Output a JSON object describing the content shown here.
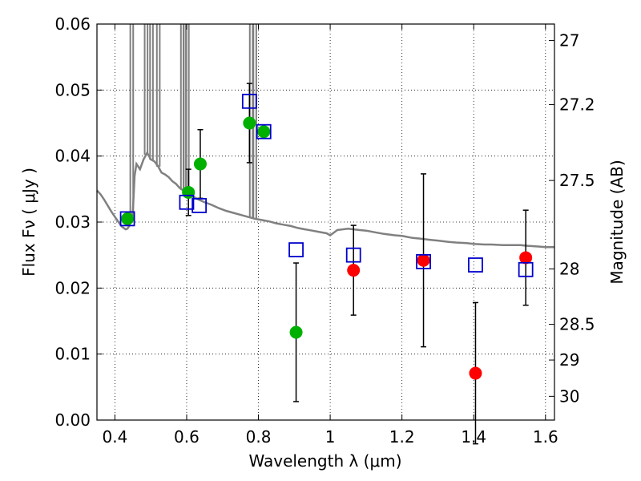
{
  "chart_data": {
    "type": "scatter",
    "xlabel": "Wavelength  λ (μm)",
    "ylabel": "Flux  Fν  ( μJy )",
    "y2label": "Magnitude (AB)",
    "xlim": [
      0.35,
      1.625
    ],
    "ylim": [
      0.0,
      0.06
    ],
    "grid": true,
    "xticks": [
      0.4,
      0.6,
      0.8,
      1.0,
      1.2,
      1.4,
      1.6
    ],
    "xtick_labels": [
      "0.4",
      "0.6",
      "0.8",
      "1",
      "1.2",
      "1.4",
      "1.6"
    ],
    "yticks": [
      0.0,
      0.01,
      0.02,
      0.03,
      0.04,
      0.05,
      0.06
    ],
    "ytick_labels": [
      "0.00",
      "0.01",
      "0.02",
      "0.03",
      "0.04",
      "0.05",
      "0.06"
    ],
    "magnitude_ticks": [
      {
        "label": "27",
        "flux": 0.0575
      },
      {
        "label": "27.2",
        "flux": 0.0478
      },
      {
        "label": "27.5",
        "flux": 0.0363
      },
      {
        "label": "28",
        "flux": 0.0229
      },
      {
        "label": "28.5",
        "flux": 0.0145
      },
      {
        "label": "29",
        "flux": 0.0091
      },
      {
        "label": "30",
        "flux": 0.0036
      }
    ],
    "series": [
      {
        "marker": "open-square",
        "color": "#0000cc",
        "points": [
          {
            "x": 0.435,
            "y": 0.0305
          },
          {
            "x": 0.6,
            "y": 0.033
          },
          {
            "x": 0.635,
            "y": 0.0325
          },
          {
            "x": 0.775,
            "y": 0.0483
          },
          {
            "x": 0.815,
            "y": 0.0437
          },
          {
            "x": 0.905,
            "y": 0.0258
          },
          {
            "x": 1.065,
            "y": 0.025
          },
          {
            "x": 1.26,
            "y": 0.024
          },
          {
            "x": 1.405,
            "y": 0.0235
          },
          {
            "x": 1.545,
            "y": 0.0228
          }
        ]
      },
      {
        "marker": "filled-circle",
        "color": "#00b000",
        "points": [
          {
            "x": 0.435,
            "y": 0.0305
          },
          {
            "x": 0.605,
            "y": 0.0345,
            "err": 0.0035
          },
          {
            "x": 0.638,
            "y": 0.0388,
            "err": 0.0052
          },
          {
            "x": 0.775,
            "y": 0.045,
            "err": 0.006
          },
          {
            "x": 0.815,
            "y": 0.0437
          },
          {
            "x": 0.905,
            "y": 0.0133,
            "err": 0.0105
          }
        ]
      },
      {
        "marker": "filled-circle",
        "color": "#ff0000",
        "points": [
          {
            "x": 1.065,
            "y": 0.0227,
            "err": 0.0068
          },
          {
            "x": 1.26,
            "y": 0.0242,
            "err": 0.0131
          },
          {
            "x": 1.405,
            "y": 0.0071,
            "err": 0.0107
          },
          {
            "x": 1.545,
            "y": 0.0246,
            "err": 0.0072
          }
        ]
      }
    ],
    "model_spectrum": {
      "color": "#808080",
      "points": [
        [
          0.35,
          0.0348
        ],
        [
          0.36,
          0.0342
        ],
        [
          0.37,
          0.0334
        ],
        [
          0.38,
          0.0325
        ],
        [
          0.39,
          0.0316
        ],
        [
          0.4,
          0.0308
        ],
        [
          0.41,
          0.03
        ],
        [
          0.42,
          0.0293
        ],
        [
          0.43,
          0.0289
        ],
        [
          0.435,
          0.029
        ],
        [
          0.44,
          0.0294
        ],
        [
          0.445,
          0.0305
        ],
        [
          0.45,
          0.0315
        ],
        [
          0.455,
          0.037
        ],
        [
          0.46,
          0.0388
        ],
        [
          0.47,
          0.038
        ],
        [
          0.48,
          0.0395
        ],
        [
          0.49,
          0.0405
        ],
        [
          0.5,
          0.0395
        ],
        [
          0.51,
          0.0392
        ],
        [
          0.52,
          0.0385
        ],
        [
          0.53,
          0.0375
        ],
        [
          0.54,
          0.0372
        ],
        [
          0.55,
          0.0368
        ],
        [
          0.56,
          0.0362
        ],
        [
          0.57,
          0.0358
        ],
        [
          0.58,
          0.0352
        ],
        [
          0.59,
          0.0348
        ],
        [
          0.6,
          0.0343
        ],
        [
          0.61,
          0.034
        ],
        [
          0.62,
          0.0338
        ],
        [
          0.63,
          0.0335
        ],
        [
          0.65,
          0.033
        ],
        [
          0.67,
          0.0326
        ],
        [
          0.69,
          0.0321
        ],
        [
          0.71,
          0.0317
        ],
        [
          0.73,
          0.0314
        ],
        [
          0.75,
          0.0311
        ],
        [
          0.77,
          0.0308
        ],
        [
          0.79,
          0.0305
        ],
        [
          0.81,
          0.0303
        ],
        [
          0.83,
          0.0301
        ],
        [
          0.85,
          0.0298
        ],
        [
          0.87,
          0.0296
        ],
        [
          0.89,
          0.0294
        ],
        [
          0.91,
          0.0291
        ],
        [
          0.93,
          0.0289
        ],
        [
          0.95,
          0.0287
        ],
        [
          0.97,
          0.0285
        ],
        [
          0.99,
          0.0283
        ],
        [
          1.0,
          0.028
        ],
        [
          1.02,
          0.0288
        ],
        [
          1.05,
          0.029
        ],
        [
          1.08,
          0.0288
        ],
        [
          1.1,
          0.0287
        ],
        [
          1.13,
          0.0284
        ],
        [
          1.15,
          0.0282
        ],
        [
          1.18,
          0.028
        ],
        [
          1.2,
          0.0279
        ],
        [
          1.23,
          0.0276
        ],
        [
          1.25,
          0.0275
        ],
        [
          1.28,
          0.0273
        ],
        [
          1.3,
          0.0272
        ],
        [
          1.33,
          0.027
        ],
        [
          1.35,
          0.0269
        ],
        [
          1.38,
          0.0268
        ],
        [
          1.4,
          0.0267
        ],
        [
          1.43,
          0.0266
        ],
        [
          1.45,
          0.0266
        ],
        [
          1.48,
          0.0265
        ],
        [
          1.5,
          0.0265
        ],
        [
          1.53,
          0.0265
        ],
        [
          1.55,
          0.0264
        ],
        [
          1.58,
          0.0263
        ],
        [
          1.6,
          0.0262
        ],
        [
          1.625,
          0.0262
        ]
      ],
      "emission_lines": [
        {
          "x": 0.447,
          "peak": 0.06
        },
        {
          "x": 0.487,
          "peak": 0.06
        },
        {
          "x": 0.502,
          "peak": 0.06
        },
        {
          "x": 0.521,
          "peak": 0.06
        },
        {
          "x": 0.588,
          "peak": 0.06
        },
        {
          "x": 0.595,
          "peak": 0.06
        },
        {
          "x": 0.602,
          "peak": 0.06
        },
        {
          "x": 0.78,
          "peak": 0.06
        },
        {
          "x": 0.79,
          "peak": 0.06
        }
      ]
    }
  }
}
